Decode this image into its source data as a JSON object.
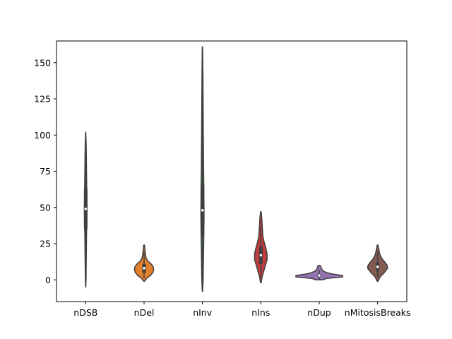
{
  "chart_data": {
    "type": "violin",
    "title": "",
    "xlabel": "",
    "ylabel": "",
    "categories": [
      "nDSB",
      "nDel",
      "nInv",
      "nIns",
      "nDup",
      "nMitosisBreaks"
    ],
    "ylim": [
      -15,
      165
    ],
    "yticks": [
      0,
      25,
      50,
      75,
      100,
      125,
      150
    ],
    "grid": false,
    "legend": "none",
    "colors": [
      "#3274a1",
      "#e1812c",
      "#3a923a",
      "#c03d3e",
      "#9372b2",
      "#845b53"
    ],
    "violins": [
      {
        "name": "nDSB",
        "min": -5,
        "max": 102,
        "q1": 35,
        "median": 49,
        "q3": 63,
        "whisker_low": 0,
        "whisker_high": 97,
        "profile": [
          [
            -5,
            0.1
          ],
          [
            0,
            0.4
          ],
          [
            10,
            0.6
          ],
          [
            20,
            0.8
          ],
          [
            30,
            1.0
          ],
          [
            40,
            1.3
          ],
          [
            48,
            1.6
          ],
          [
            55,
            1.4
          ],
          [
            65,
            1.2
          ],
          [
            75,
            1.0
          ],
          [
            85,
            0.8
          ],
          [
            95,
            0.5
          ],
          [
            102,
            0.1
          ]
        ]
      },
      {
        "name": "nDel",
        "min": -1,
        "max": 24,
        "q1": 5,
        "median": 8,
        "q3": 11,
        "whisker_low": 1,
        "whisker_high": 20,
        "profile": [
          [
            -1,
            0.5
          ],
          [
            1,
            3
          ],
          [
            3,
            7.5
          ],
          [
            5,
            10.5
          ],
          [
            7,
            11.5
          ],
          [
            9,
            11
          ],
          [
            11,
            8.5
          ],
          [
            13,
            4.5
          ],
          [
            15,
            2.5
          ],
          [
            18,
            1.5
          ],
          [
            21,
            1
          ],
          [
            24,
            0.5
          ]
        ]
      },
      {
        "name": "nInv",
        "min": -8,
        "max": 161,
        "q1": 30,
        "median": 48,
        "q3": 67,
        "whisker_low": 0,
        "whisker_high": 130,
        "profile": [
          [
            -8,
            0.2
          ],
          [
            0,
            0.8
          ],
          [
            15,
            1.2
          ],
          [
            30,
            1.6
          ],
          [
            45,
            1.9
          ],
          [
            60,
            1.7
          ],
          [
            80,
            1.3
          ],
          [
            100,
            1.0
          ],
          [
            120,
            0.8
          ],
          [
            140,
            0.6
          ],
          [
            161,
            0.2
          ]
        ]
      },
      {
        "name": "nIns",
        "min": -2,
        "max": 47,
        "q1": 11,
        "median": 17,
        "q3": 23,
        "whisker_low": 2,
        "whisker_high": 37,
        "profile": [
          [
            -2,
            0.4
          ],
          [
            2,
            1.5
          ],
          [
            6,
            3.5
          ],
          [
            10,
            5.5
          ],
          [
            14,
            7.5
          ],
          [
            18,
            7.5
          ],
          [
            22,
            6
          ],
          [
            26,
            4
          ],
          [
            30,
            2.5
          ],
          [
            36,
            1.8
          ],
          [
            42,
            1.2
          ],
          [
            47,
            0.4
          ]
        ]
      },
      {
        "name": "nDup",
        "min": 0,
        "max": 10,
        "q1": 2,
        "median": 3,
        "q3": 4,
        "whisker_low": 0,
        "whisker_high": 7,
        "profile": [
          [
            0,
            4
          ],
          [
            1,
            9
          ],
          [
            2,
            28
          ],
          [
            3,
            28
          ],
          [
            4,
            16
          ],
          [
            5,
            9
          ],
          [
            6,
            5
          ],
          [
            7,
            3.5
          ],
          [
            8,
            2.5
          ],
          [
            9,
            2
          ],
          [
            10,
            1
          ]
        ]
      },
      {
        "name": "nMitosisBreaks",
        "min": -1,
        "max": 24,
        "q1": 6,
        "median": 9,
        "q3": 12,
        "whisker_low": 2,
        "whisker_high": 19,
        "profile": [
          [
            -1,
            0.5
          ],
          [
            2,
            3
          ],
          [
            5,
            8
          ],
          [
            8,
            12
          ],
          [
            10,
            11.5
          ],
          [
            12,
            9
          ],
          [
            14,
            6
          ],
          [
            16,
            4
          ],
          [
            18,
            2.5
          ],
          [
            21,
            1.5
          ],
          [
            24,
            0.5
          ]
        ]
      }
    ]
  }
}
